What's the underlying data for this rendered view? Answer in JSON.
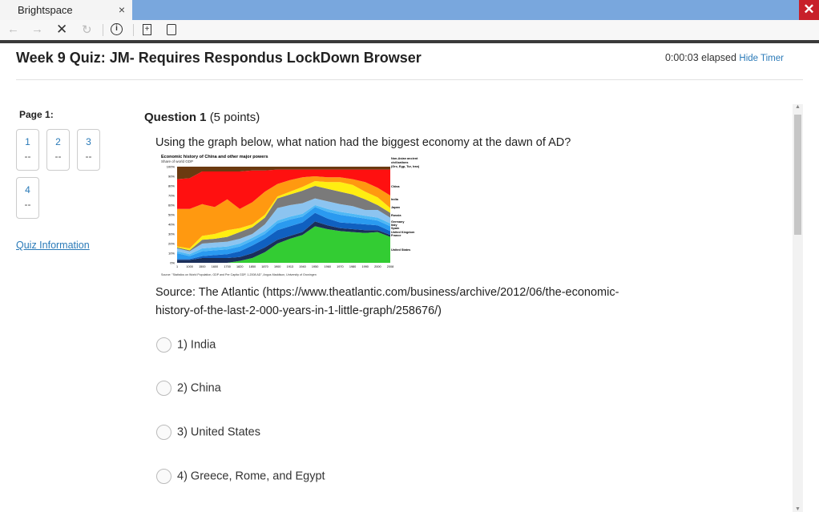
{
  "browser": {
    "tab_title": "Brightspace",
    "tab_close": "×",
    "window_close": "✕"
  },
  "toolbar": {
    "icons": [
      "back-arrow-icon",
      "forward-arrow-icon",
      "stop-icon",
      "reload-icon",
      "info-icon",
      "new-page-icon",
      "calculator-icon"
    ]
  },
  "quiz": {
    "title": "Week 9 Quiz: JM- Requires Respondus LockDown Browser",
    "elapsed": "0:00:03 elapsed",
    "hide_timer": "Hide Timer"
  },
  "sidebar": {
    "page_label": "Page 1:",
    "questions": [
      {
        "num": "1",
        "status": "--"
      },
      {
        "num": "2",
        "status": "--"
      },
      {
        "num": "3",
        "status": "--"
      },
      {
        "num": "4",
        "status": "--"
      }
    ],
    "quiz_info": "Quiz Information"
  },
  "question": {
    "label": "Question 1",
    "points": "(5 points)",
    "text": "Using the graph below, what nation had the biggest economy at the dawn of AD?",
    "source": "Source: The Atlantic (https://www.theatlantic.com/business/archive/2012/06/the-economic-history-of-the-last-2-000-years-in-1-little-graph/258676/)",
    "options": [
      "1)  India",
      "2)  China",
      "3)  United States",
      "4)  Greece, Rome, and Egypt"
    ]
  },
  "chart_data": {
    "type": "area",
    "title": "Economic history of China and other major powers",
    "subtitle": "Share of world GDP",
    "source": "Source: \"Statistics on World Population, GDP and Per Capita GDP, 1-2008 AD\", Angus Maddison, University of Groningen",
    "x": [
      "1",
      "1000",
      "1500",
      "1600",
      "1700",
      "1820",
      "1850",
      "1870",
      "1900",
      "1913",
      "1940",
      "1950",
      "1960",
      "1970",
      "1980",
      "1990",
      "2000",
      "2008"
    ],
    "yticks": [
      "0%",
      "10%",
      "20%",
      "30%",
      "40%",
      "50%",
      "60%",
      "70%",
      "80%",
      "90%",
      "100%"
    ],
    "ylim": [
      0,
      100
    ],
    "cumulative_series": [
      {
        "name": "United States",
        "color": "#33cc33",
        "top": [
          0,
          0,
          0,
          0,
          0,
          2,
          5,
          11,
          20,
          25,
          29,
          38,
          35,
          33,
          32,
          31,
          32,
          27
        ]
      },
      {
        "name": "France",
        "color": "#1a2f5a",
        "top": [
          3,
          3,
          5,
          5,
          5,
          6,
          10,
          16,
          24,
          28,
          32,
          43,
          39,
          36,
          35,
          34,
          34,
          29
        ]
      },
      {
        "name": "United Kingdom",
        "color": "#1060c0",
        "top": [
          4,
          4,
          7,
          8,
          9,
          12,
          18,
          25,
          34,
          38,
          42,
          52,
          46,
          42,
          41,
          40,
          39,
          33
        ]
      },
      {
        "name": "Spain",
        "color": "#2a9af0",
        "top": [
          10,
          7,
          12,
          13,
          14,
          17,
          23,
          30,
          41,
          45,
          48,
          58,
          53,
          50,
          48,
          46,
          44,
          38
        ]
      },
      {
        "name": "Italy",
        "color": "#4fb8f5",
        "top": [
          12,
          9,
          15,
          16,
          17,
          20,
          26,
          33,
          44,
          48,
          51,
          60,
          56,
          53,
          51,
          49,
          47,
          41
        ]
      },
      {
        "name": "Germany",
        "color": "#8cc4f0",
        "top": [
          15,
          12,
          20,
          21,
          22,
          25,
          30,
          40,
          57,
          60,
          62,
          67,
          64,
          61,
          59,
          55,
          55,
          47
        ]
      },
      {
        "name": "Russia",
        "color": "#7a7a7a",
        "top": [
          16,
          13,
          24,
          25,
          27,
          32,
          37,
          47,
          67,
          71,
          75,
          80,
          77,
          74,
          71,
          66,
          60,
          52
        ]
      },
      {
        "name": "Japan",
        "color": "#ffee11",
        "top": [
          17,
          15,
          28,
          30,
          34,
          36,
          40,
          50,
          69,
          74,
          79,
          85,
          84,
          84,
          81,
          74,
          68,
          57
        ]
      },
      {
        "name": "India",
        "color": "#ff9910",
        "top": [
          56,
          56,
          61,
          58,
          66,
          56,
          63,
          74,
          82,
          86,
          89,
          90,
          89,
          89,
          87,
          84,
          78,
          70
        ]
      },
      {
        "name": "China",
        "color": "#ff1010",
        "top": [
          87,
          88,
          95,
          95,
          95,
          95,
          96,
          96,
          97,
          97,
          97,
          97,
          97,
          97,
          97,
          97,
          97,
          97
        ]
      },
      {
        "name": "Non-Asian ancient civilizations (Grc, Egp, Tur, Iran)",
        "color": "#6b3a10",
        "top": [
          100,
          100,
          100,
          100,
          100,
          100,
          100,
          100,
          100,
          100,
          100,
          100,
          100,
          100,
          100,
          100,
          100,
          100
        ]
      }
    ],
    "legend_labels": [
      "Non-Asian ancient",
      "civilizations",
      "(Grc, Egp, Tur, Iran)",
      "China",
      "India",
      "Japan",
      "Russia",
      "Germany",
      "Italy",
      "Spain",
      "United Kingdom",
      "France",
      "United States"
    ]
  }
}
